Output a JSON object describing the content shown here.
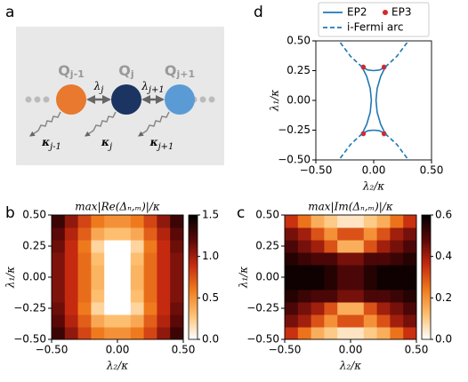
{
  "diagram": {
    "panel_label": "a",
    "nodes": [
      {
        "symbol": "Q",
        "sub": "j-1",
        "color": "#e8792f",
        "decay": "κ",
        "decay_sub": "j-1"
      },
      {
        "symbol": "Q",
        "sub": "j",
        "color": "#1c3461",
        "decay": "κ",
        "decay_sub": "j"
      },
      {
        "symbol": "Q",
        "sub": "j+1",
        "color": "#5b9bd5",
        "decay": "κ",
        "decay_sub": "j+1"
      }
    ],
    "couplings": [
      {
        "symbol": "λ",
        "sub": "j"
      },
      {
        "symbol": "λ",
        "sub": "j+1"
      }
    ]
  },
  "chart_data": [
    {
      "type": "line",
      "panel_label": "d",
      "xlabel": "λ₂/κ",
      "ylabel": "λ₁/κ",
      "xlim": [
        -0.5,
        0.5
      ],
      "ylim": [
        -0.5,
        0.5
      ],
      "xticks": [
        {
          "value": -0.5,
          "label": "−0.50"
        },
        {
          "value": 0,
          "label": "0.00"
        },
        {
          "value": 0.5,
          "label": "0.50"
        }
      ],
      "yticks": [
        {
          "value": -0.5,
          "label": "−0.50"
        },
        {
          "value": -0.25,
          "label": "−0.25"
        },
        {
          "value": 0,
          "label": "0.00"
        },
        {
          "value": 0.25,
          "label": "0.25"
        },
        {
          "value": 0.5,
          "label": "0.50"
        }
      ],
      "series": [
        {
          "name": "EP2",
          "color": "#1f77b4",
          "style": "solid",
          "x": [
            -0.1,
            -0.06,
            -0.03,
            -0.02,
            -0.03,
            -0.06,
            -0.1,
            null,
            0.1,
            0.06,
            0.03,
            0.02,
            0.03,
            0.06,
            0.1,
            null,
            -0.1,
            -0.05,
            0,
            0.05,
            0.1,
            null,
            -0.1,
            -0.05,
            0,
            0.05,
            0.1
          ],
          "values": [
            -0.28,
            -0.2,
            -0.1,
            0,
            0.1,
            0.2,
            0.28,
            null,
            -0.28,
            -0.2,
            -0.1,
            0,
            0.1,
            0.2,
            0.28,
            null,
            0.28,
            0.255,
            0.25,
            0.255,
            0.28,
            null,
            -0.28,
            -0.255,
            -0.25,
            -0.255,
            -0.28
          ]
        },
        {
          "name": "EP3",
          "color": "#d62728",
          "style": "points",
          "x": [
            -0.09,
            0.09,
            -0.09,
            0.09
          ],
          "values": [
            0.28,
            0.28,
            -0.28,
            -0.28
          ]
        },
        {
          "name": "i-Fermi arc",
          "color": "#1f77b4",
          "style": "dashed",
          "x": [
            -0.1,
            -0.2,
            -0.3,
            null,
            0.1,
            0.2,
            0.3,
            null,
            -0.1,
            -0.2,
            -0.3,
            null,
            0.1,
            0.2,
            0.3
          ],
          "values": [
            0.28,
            0.37,
            0.5,
            null,
            0.28,
            0.37,
            0.5,
            null,
            -0.28,
            -0.37,
            -0.5,
            null,
            -0.28,
            -0.37,
            -0.5
          ]
        }
      ]
    },
    {
      "type": "heatmap",
      "panel_label": "b",
      "title": "max|Re(Δₙ,ₘ)|/κ",
      "xlabel": "λ₂/κ",
      "ylabel": "λ₁/κ",
      "xlim": [
        -0.5,
        0.5
      ],
      "ylim": [
        -0.5,
        0.5
      ],
      "xticks": [
        {
          "value": -0.5,
          "label": "−0.50"
        },
        {
          "value": 0,
          "label": "0.00"
        },
        {
          "value": 0.5,
          "label": "0.50"
        }
      ],
      "yticks": [
        {
          "value": -0.5,
          "label": "−0.50"
        },
        {
          "value": -0.25,
          "label": "−0.25"
        },
        {
          "value": 0,
          "label": "0.00"
        },
        {
          "value": 0.25,
          "label": "0.25"
        },
        {
          "value": 0.5,
          "label": "0.50"
        }
      ],
      "colormap": [
        "#ffffff",
        "#fdbf6f",
        "#ef7a1d",
        "#c52a10",
        "#5a0808",
        "#000000"
      ],
      "zlim": [
        0,
        1.5
      ],
      "zticks": [
        {
          "value": 0,
          "label": "0.0"
        },
        {
          "value": 0.5,
          "label": "0.5"
        },
        {
          "value": 1,
          "label": "1.0"
        },
        {
          "value": 1.5,
          "label": "1.5"
        }
      ],
      "x": [
        -0.45,
        -0.35,
        -0.25,
        -0.15,
        -0.05,
        0.05,
        0.15,
        0.25,
        0.35,
        0.45
      ],
      "y": [
        -0.45,
        -0.35,
        -0.25,
        -0.15,
        -0.05,
        0.05,
        0.15,
        0.25,
        0.35,
        0.45
      ],
      "z": [
        [
          1.3,
          1.05,
          0.8,
          0.6,
          0.5,
          0.5,
          0.6,
          0.8,
          1.05,
          1.3
        ],
        [
          1.2,
          0.95,
          0.7,
          0.4,
          0.3,
          0.3,
          0.4,
          0.7,
          0.95,
          1.2
        ],
        [
          1.15,
          0.9,
          0.6,
          0.2,
          0.0,
          0.0,
          0.2,
          0.6,
          0.9,
          1.15
        ],
        [
          1.1,
          0.9,
          0.65,
          0.3,
          0.0,
          0.0,
          0.3,
          0.65,
          0.9,
          1.1
        ],
        [
          1.1,
          0.9,
          0.65,
          0.35,
          0.0,
          0.0,
          0.35,
          0.65,
          0.9,
          1.1
        ],
        [
          1.1,
          0.9,
          0.65,
          0.35,
          0.0,
          0.0,
          0.35,
          0.65,
          0.9,
          1.1
        ],
        [
          1.1,
          0.9,
          0.65,
          0.3,
          0.0,
          0.0,
          0.3,
          0.65,
          0.9,
          1.1
        ],
        [
          1.15,
          0.9,
          0.6,
          0.2,
          0.0,
          0.0,
          0.2,
          0.6,
          0.9,
          1.15
        ],
        [
          1.2,
          0.95,
          0.7,
          0.4,
          0.3,
          0.3,
          0.4,
          0.7,
          0.95,
          1.2
        ],
        [
          1.3,
          1.05,
          0.8,
          0.6,
          0.5,
          0.5,
          0.6,
          0.8,
          1.05,
          1.3
        ]
      ]
    },
    {
      "type": "heatmap",
      "panel_label": "c",
      "title": "max|Im(Δₙ,ₘ)|/κ",
      "xlabel": "λ₂/κ",
      "ylabel": "λ₁/κ",
      "xlim": [
        -0.5,
        0.5
      ],
      "ylim": [
        -0.5,
        0.5
      ],
      "xticks": [
        {
          "value": -0.5,
          "label": "−0.50"
        },
        {
          "value": 0,
          "label": "0.00"
        },
        {
          "value": 0.5,
          "label": "0.50"
        }
      ],
      "yticks": [
        {
          "value": -0.5,
          "label": "−0.50"
        },
        {
          "value": -0.25,
          "label": "−0.25"
        },
        {
          "value": 0,
          "label": "0.00"
        },
        {
          "value": 0.25,
          "label": "0.25"
        },
        {
          "value": 0.5,
          "label": "0.50"
        }
      ],
      "colormap": [
        "#ffffff",
        "#fdbf6f",
        "#ef7a1d",
        "#c52a10",
        "#5a0808",
        "#000000"
      ],
      "zlim": [
        0,
        0.6
      ],
      "zticks": [
        {
          "value": 0,
          "label": "0.0"
        },
        {
          "value": 0.2,
          "label": "0.2"
        },
        {
          "value": 0.4,
          "label": "0.4"
        },
        {
          "value": 0.6,
          "label": "0.6"
        }
      ],
      "x": [
        -0.45,
        -0.35,
        -0.25,
        -0.15,
        -0.05,
        0.05,
        0.15,
        0.25,
        0.35,
        0.45
      ],
      "y": [
        -0.45,
        -0.35,
        -0.25,
        -0.15,
        -0.05,
        0.05,
        0.15,
        0.25,
        0.35,
        0.45
      ],
      "z": [
        [
          0.35,
          0.25,
          0.15,
          0.1,
          0.05,
          0.05,
          0.1,
          0.15,
          0.25,
          0.35
        ],
        [
          0.45,
          0.4,
          0.3,
          0.2,
          0.3,
          0.3,
          0.2,
          0.3,
          0.4,
          0.45
        ],
        [
          0.5,
          0.45,
          0.4,
          0.3,
          0.15,
          0.15,
          0.3,
          0.4,
          0.45,
          0.5
        ],
        [
          0.55,
          0.52,
          0.5,
          0.5,
          0.45,
          0.45,
          0.5,
          0.5,
          0.52,
          0.55
        ],
        [
          0.58,
          0.58,
          0.58,
          0.55,
          0.5,
          0.5,
          0.55,
          0.58,
          0.58,
          0.58
        ],
        [
          0.58,
          0.58,
          0.58,
          0.55,
          0.5,
          0.5,
          0.55,
          0.58,
          0.58,
          0.58
        ],
        [
          0.55,
          0.52,
          0.5,
          0.5,
          0.45,
          0.45,
          0.5,
          0.5,
          0.52,
          0.55
        ],
        [
          0.5,
          0.45,
          0.4,
          0.3,
          0.15,
          0.15,
          0.3,
          0.4,
          0.45,
          0.5
        ],
        [
          0.45,
          0.4,
          0.3,
          0.2,
          0.3,
          0.3,
          0.2,
          0.3,
          0.4,
          0.45
        ],
        [
          0.35,
          0.25,
          0.15,
          0.1,
          0.05,
          0.05,
          0.1,
          0.15,
          0.25,
          0.35
        ]
      ]
    }
  ]
}
